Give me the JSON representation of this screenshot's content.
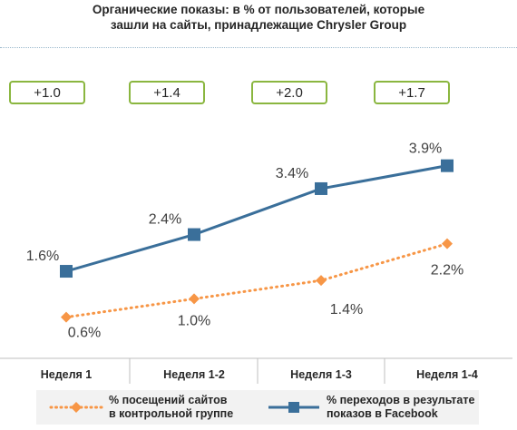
{
  "title_lines": [
    "Органические показы: в % от пользователей, которые",
    "зашли на сайты, принадлежащие Chrysler Group"
  ],
  "differences": [
    "+1.0",
    "+1.4",
    "+2.0",
    "+1.7"
  ],
  "chart_data": {
    "type": "line",
    "title": "Органические показы: в % от пользователей, которые зашли на сайты, принадлежащие Chrysler Group",
    "categories": [
      "Неделя 1",
      "Неделя 1-2",
      "Неделя 1-3",
      "Неделя 1-4"
    ],
    "ylim": [
      0,
      4.5
    ],
    "grid": false,
    "legend_position": "bottom",
    "series": [
      {
        "name": "% переходов в результате показов в Facebook",
        "name_lines": [
          "% переходов в результате",
          "показов в Facebook"
        ],
        "values": [
          1.6,
          2.4,
          3.4,
          3.9
        ],
        "labels": [
          "1.6%",
          "2.4%",
          "3.4%",
          "3.9%"
        ],
        "color": "#3a6f9a",
        "marker": "square",
        "style": "solid"
      },
      {
        "name": "% посещений сайтов в контрольной группе",
        "name_lines": [
          "% посещений сайтов",
          "в контрольной группе"
        ],
        "values": [
          0.6,
          1.0,
          1.4,
          2.2
        ],
        "labels": [
          "0.6%",
          "1.0%",
          "1.4%",
          "2.2%"
        ],
        "color": "#f79646",
        "marker": "diamond",
        "style": "dotted"
      }
    ]
  }
}
